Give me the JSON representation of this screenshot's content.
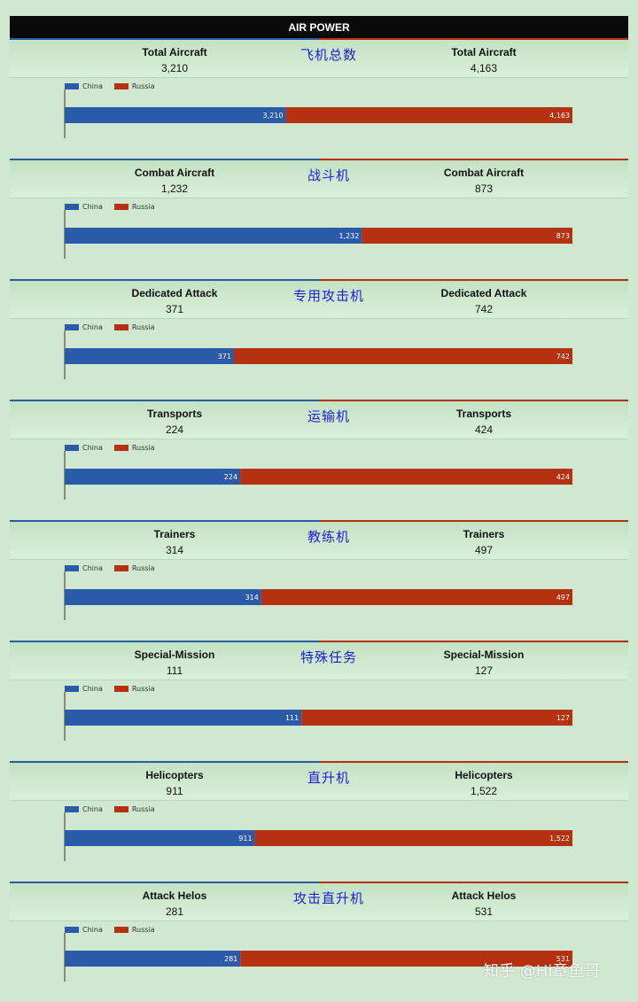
{
  "header": {
    "title": "AIR POWER"
  },
  "colors": {
    "china": "#2b5ba8",
    "russia": "#b5310f"
  },
  "legend": {
    "china": "China",
    "russia": "Russia"
  },
  "watermark": "知乎 @Hi章鱼哥",
  "chart_data": [
    {
      "type": "bar",
      "orientation": "horizontal",
      "stacked": true,
      "label_left": "Total Aircraft",
      "label_right": "Total Aircraft",
      "label_zh": "飞机总数",
      "china_display": "3,210",
      "russia_display": "4,163",
      "series": [
        {
          "name": "China",
          "values": [
            3210
          ]
        },
        {
          "name": "Russia",
          "values": [
            4163
          ]
        }
      ]
    },
    {
      "type": "bar",
      "orientation": "horizontal",
      "stacked": true,
      "label_left": "Combat Aircraft",
      "label_right": "Combat Aircraft",
      "label_zh": "战斗机",
      "china_display": "1,232",
      "russia_display": "873",
      "series": [
        {
          "name": "China",
          "values": [
            1232
          ]
        },
        {
          "name": "Russia",
          "values": [
            873
          ]
        }
      ]
    },
    {
      "type": "bar",
      "orientation": "horizontal",
      "stacked": true,
      "label_left": "Dedicated Attack",
      "label_right": "Dedicated Attack",
      "label_zh": "专用攻击机",
      "china_display": "371",
      "russia_display": "742",
      "series": [
        {
          "name": "China",
          "values": [
            371
          ]
        },
        {
          "name": "Russia",
          "values": [
            742
          ]
        }
      ]
    },
    {
      "type": "bar",
      "orientation": "horizontal",
      "stacked": true,
      "label_left": "Transports",
      "label_right": "Transports",
      "label_zh": "运输机",
      "china_display": "224",
      "russia_display": "424",
      "series": [
        {
          "name": "China",
          "values": [
            224
          ]
        },
        {
          "name": "Russia",
          "values": [
            424
          ]
        }
      ]
    },
    {
      "type": "bar",
      "orientation": "horizontal",
      "stacked": true,
      "label_left": "Trainers",
      "label_right": "Trainers",
      "label_zh": "教练机",
      "china_display": "314",
      "russia_display": "497",
      "series": [
        {
          "name": "China",
          "values": [
            314
          ]
        },
        {
          "name": "Russia",
          "values": [
            497
          ]
        }
      ]
    },
    {
      "type": "bar",
      "orientation": "horizontal",
      "stacked": true,
      "label_left": "Special-Mission",
      "label_right": "Special-Mission",
      "label_zh": "特殊任务",
      "china_display": "111",
      "russia_display": "127",
      "series": [
        {
          "name": "China",
          "values": [
            111
          ]
        },
        {
          "name": "Russia",
          "values": [
            127
          ]
        }
      ]
    },
    {
      "type": "bar",
      "orientation": "horizontal",
      "stacked": true,
      "label_left": "Helicopters",
      "label_right": "Helicopters",
      "label_zh": "直升机",
      "china_display": "911",
      "russia_display": "1,522",
      "series": [
        {
          "name": "China",
          "values": [
            911
          ]
        },
        {
          "name": "Russia",
          "values": [
            1522
          ]
        }
      ]
    },
    {
      "type": "bar",
      "orientation": "horizontal",
      "stacked": true,
      "label_left": "Attack Helos",
      "label_right": "Attack Helos",
      "label_zh": "攻击直升机",
      "china_display": "281",
      "russia_display": "531",
      "series": [
        {
          "name": "China",
          "values": [
            281
          ]
        },
        {
          "name": "Russia",
          "values": [
            531
          ]
        }
      ]
    }
  ]
}
